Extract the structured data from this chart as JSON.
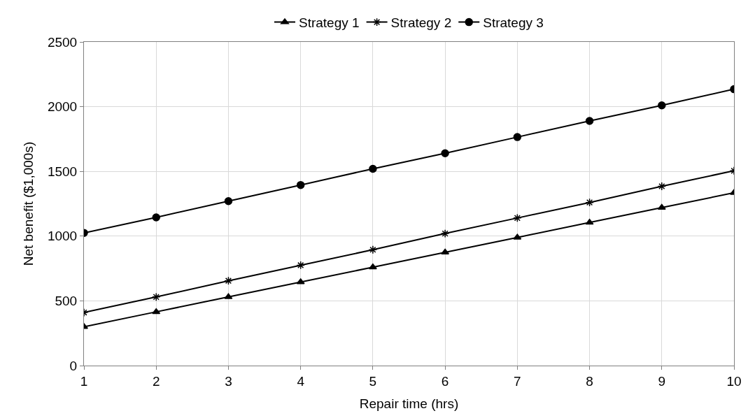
{
  "chart_data": {
    "type": "line",
    "xlabel": "Repair time (hrs)",
    "ylabel": "Net benefit ($1,000s)",
    "x": [
      1,
      2,
      3,
      4,
      5,
      6,
      7,
      8,
      9,
      10
    ],
    "series": [
      {
        "name": "Strategy 1",
        "color": "#000000",
        "marker": "triangle",
        "values": [
          300,
          415,
          530,
          645,
          760,
          875,
          990,
          1105,
          1220,
          1335
        ]
      },
      {
        "name": "Strategy 2",
        "color": "#000000",
        "marker": "cross",
        "values": [
          410,
          530,
          655,
          775,
          895,
          1020,
          1140,
          1260,
          1385,
          1505
        ]
      },
      {
        "name": "Strategy 3",
        "color": "#000000",
        "marker": "circle",
        "values": [
          1025,
          1145,
          1270,
          1395,
          1520,
          1640,
          1765,
          1890,
          2010,
          2135
        ]
      }
    ],
    "xlim": [
      1,
      10
    ],
    "xticks": [
      1,
      2,
      3,
      4,
      5,
      6,
      7,
      8,
      9,
      10
    ],
    "ylim": [
      0,
      2500
    ],
    "yticks": [
      0,
      500,
      1000,
      1500,
      2000,
      2500
    ],
    "grid": true,
    "legend": "top",
    "line_style": "solid"
  }
}
